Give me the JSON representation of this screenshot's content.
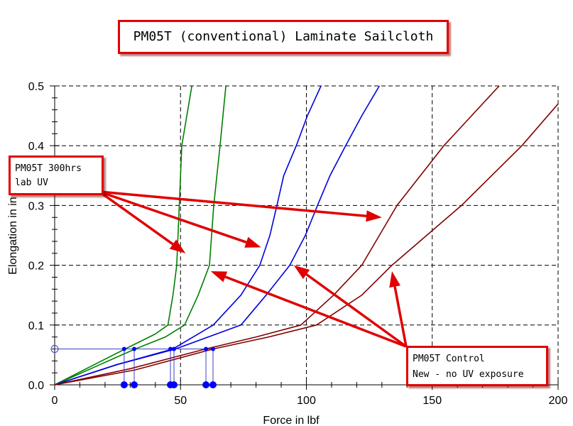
{
  "chart_data": {
    "type": "line",
    "title": "PM05T (conventional) Laminate Sailcloth",
    "xlabel": "Force in lbf",
    "ylabel": "Elongation in in",
    "xlim": [
      0,
      200
    ],
    "ylim": [
      0,
      0.5
    ],
    "xticks": [
      "0",
      "50",
      "100",
      "150",
      "200"
    ],
    "yticks": [
      "0.0",
      "0.1",
      "0.2",
      "0.3",
      "0.4",
      "0.5"
    ],
    "grid": true,
    "colors": {
      "uv": "#008000",
      "mid": "#0000e0",
      "control": "#800000",
      "annotation": "#e00000",
      "marker": "#0000ff"
    },
    "series": [
      {
        "color": "#008000",
        "points": [
          [
            0,
            0
          ],
          [
            14,
            0.03
          ],
          [
            28,
            0.06
          ],
          [
            40,
            0.085
          ],
          [
            45,
            0.1
          ],
          [
            47,
            0.15
          ],
          [
            48.5,
            0.2
          ],
          [
            49.5,
            0.3
          ],
          [
            50.5,
            0.4
          ],
          [
            54.5,
            0.5
          ]
        ]
      },
      {
        "color": "#008000",
        "points": [
          [
            0,
            0
          ],
          [
            16,
            0.03
          ],
          [
            32,
            0.06
          ],
          [
            44,
            0.08
          ],
          [
            51.6,
            0.1
          ],
          [
            57,
            0.15
          ],
          [
            61.5,
            0.2
          ],
          [
            63.2,
            0.3
          ],
          [
            65.7,
            0.4
          ],
          [
            68,
            0.5
          ]
        ]
      },
      {
        "color": "#0000e0",
        "points": [
          [
            0,
            0
          ],
          [
            24,
            0.033
          ],
          [
            47,
            0.06
          ],
          [
            63,
            0.1
          ],
          [
            74,
            0.15
          ],
          [
            81.5,
            0.2
          ],
          [
            85.5,
            0.25
          ],
          [
            88.3,
            0.3
          ],
          [
            91,
            0.35
          ],
          [
            96,
            0.4
          ],
          [
            100.4,
            0.45
          ],
          [
            105.8,
            0.5
          ]
        ]
      },
      {
        "color": "#0000e0",
        "points": [
          [
            0,
            0
          ],
          [
            25,
            0.034
          ],
          [
            48,
            0.06
          ],
          [
            74,
            0.1
          ],
          [
            84,
            0.15
          ],
          [
            93.4,
            0.2
          ],
          [
            99.6,
            0.25
          ],
          [
            104.4,
            0.3
          ],
          [
            109.4,
            0.35
          ],
          [
            115.6,
            0.4
          ],
          [
            122,
            0.45
          ],
          [
            129,
            0.5
          ]
        ]
      },
      {
        "color": "#800000",
        "points": [
          [
            0,
            0
          ],
          [
            30,
            0.027
          ],
          [
            60,
            0.06
          ],
          [
            80,
            0.08
          ],
          [
            97.8,
            0.1
          ],
          [
            110.8,
            0.15
          ],
          [
            122,
            0.2
          ],
          [
            136,
            0.3
          ],
          [
            154.6,
            0.4
          ],
          [
            176.6,
            0.5
          ]
        ]
      },
      {
        "color": "#800000",
        "points": [
          [
            0,
            0
          ],
          [
            32,
            0.025
          ],
          [
            63,
            0.06
          ],
          [
            85,
            0.08
          ],
          [
            104,
            0.1
          ],
          [
            122,
            0.15
          ],
          [
            134,
            0.2
          ],
          [
            161.6,
            0.3
          ],
          [
            185.6,
            0.4
          ],
          [
            200,
            0.47
          ]
        ]
      }
    ],
    "marker_level": 0.06,
    "markers_x": [
      27.6,
      31.6,
      46,
      47.4,
      60.1,
      62.9
    ],
    "annotations": [
      {
        "text_lines": [
          "PM05T 300hrs",
          "lab UV"
        ],
        "targets": [
          [
            52,
            0.22
          ],
          [
            82,
            0.23
          ],
          [
            130,
            0.28
          ]
        ]
      },
      {
        "text_lines": [
          "PM05T Control",
          "New - no UV exposure"
        ],
        "targets": [
          [
            62,
            0.19
          ],
          [
            95,
            0.2
          ],
          [
            134,
            0.19
          ]
        ]
      }
    ]
  }
}
